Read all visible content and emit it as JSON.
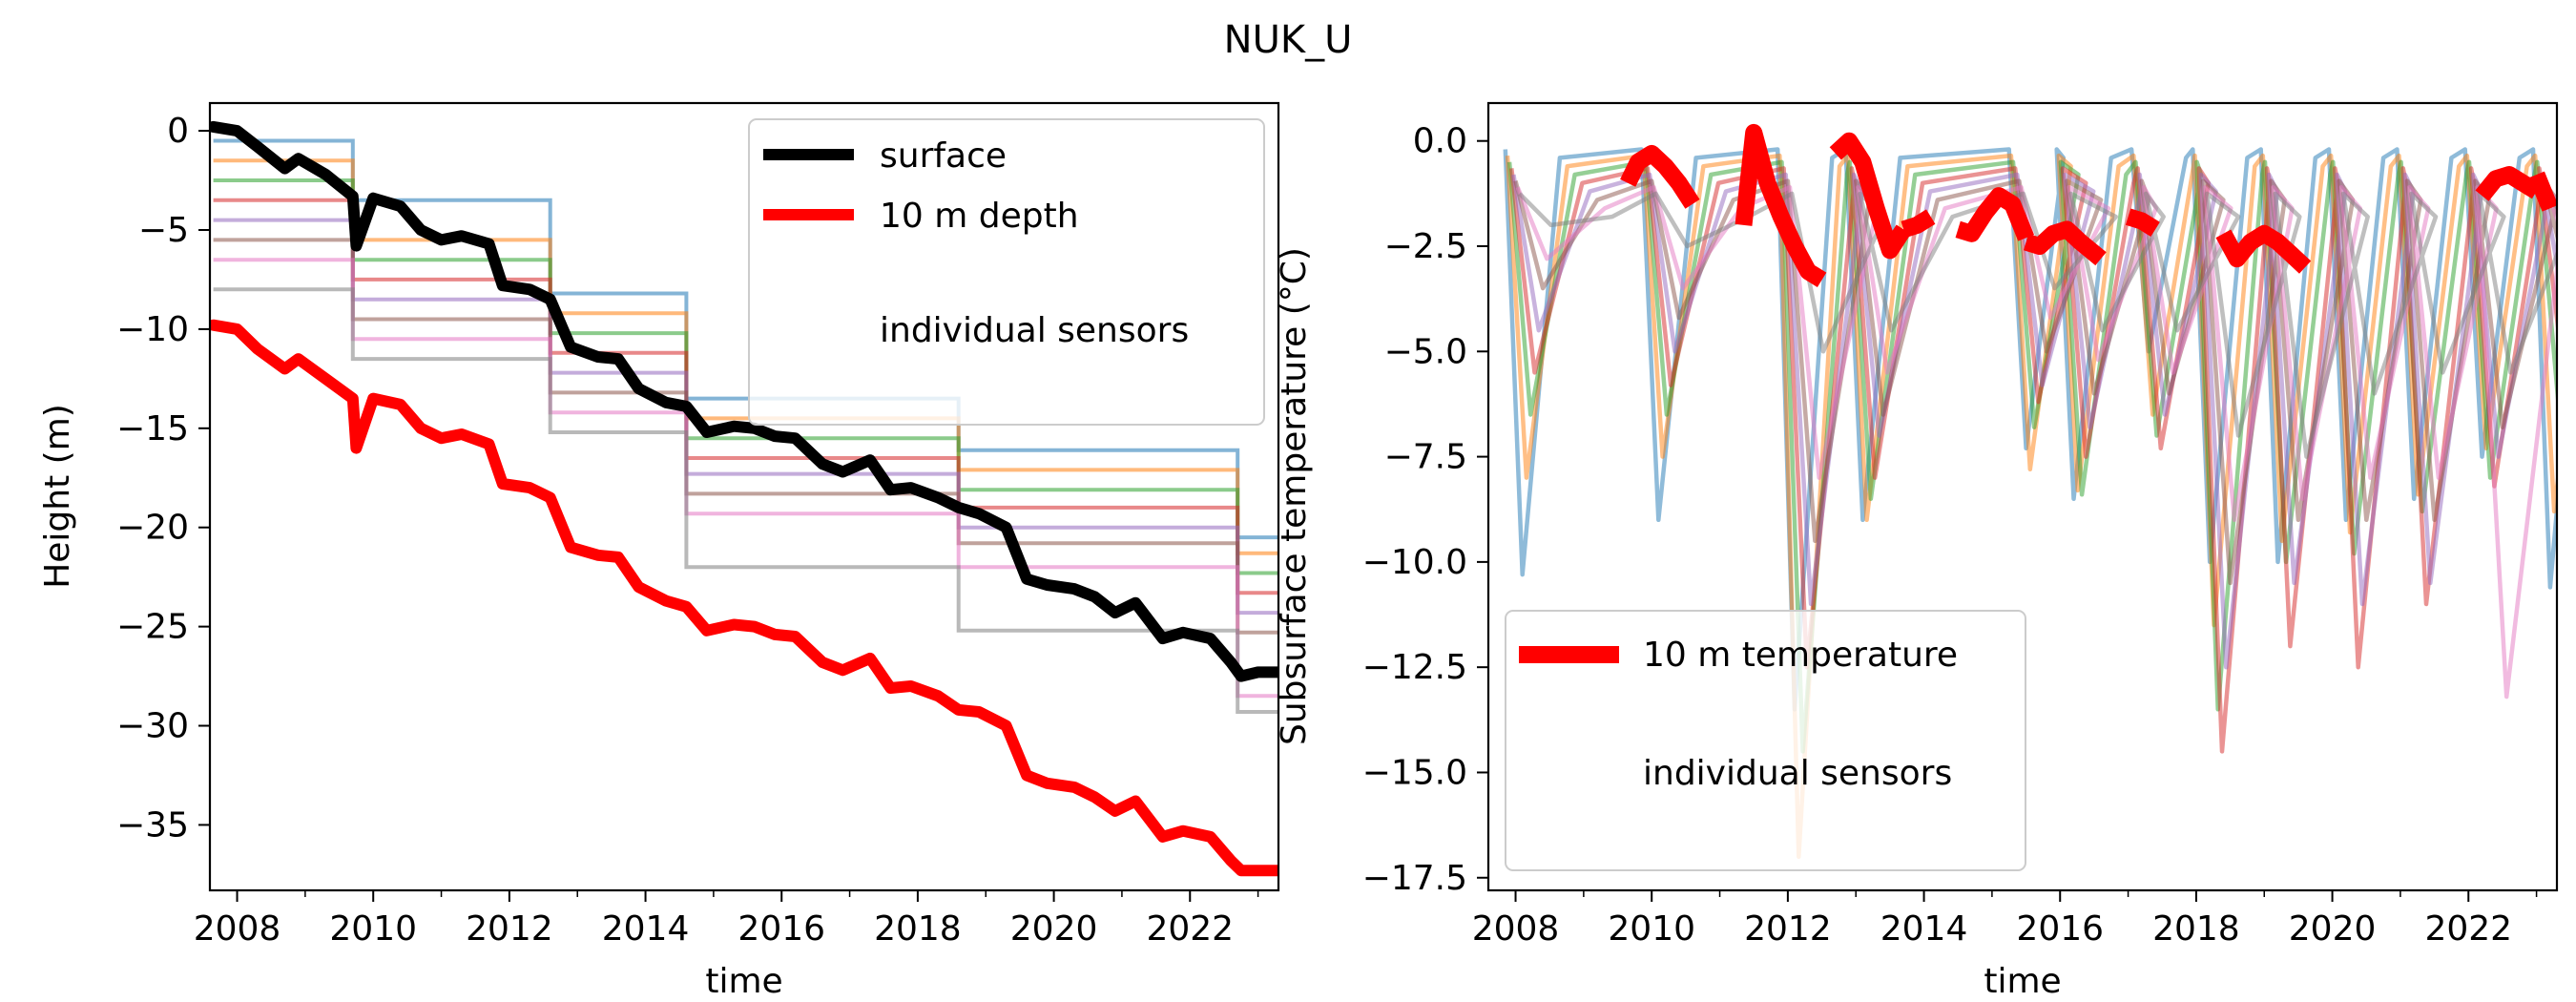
{
  "figure": {
    "title": "NUK_U"
  },
  "colors": {
    "surface": "#000000",
    "depth10": "#ff0000",
    "sensors": [
      "#1f77b4",
      "#ff7f0e",
      "#2ca02c",
      "#d62728",
      "#9467bd",
      "#8c564b",
      "#e377c2",
      "#7f7f7f"
    ]
  },
  "chart_data": [
    {
      "type": "line",
      "panel": "left",
      "xlabel": "time",
      "ylabel": "Height (m)",
      "xlim": [
        2007.6,
        2023.3
      ],
      "ylim": [
        -38.3,
        1.4
      ],
      "xticks": [
        2008,
        2010,
        2012,
        2014,
        2016,
        2018,
        2020,
        2022
      ],
      "yticks": [
        0,
        -5,
        -10,
        -15,
        -20,
        -25,
        -30,
        -35
      ],
      "grid": false,
      "legend": {
        "placement": "top-right",
        "entries": [
          "surface",
          "10 m depth",
          "individual sensors"
        ]
      },
      "series": [
        {
          "name": "surface",
          "x": [
            2007.65,
            2008.0,
            2008.3,
            2008.7,
            2008.9,
            2009.3,
            2009.7,
            2009.75,
            2010.0,
            2010.4,
            2010.7,
            2011.0,
            2011.3,
            2011.7,
            2011.9,
            2012.3,
            2012.6,
            2012.9,
            2013.3,
            2013.6,
            2013.9,
            2014.3,
            2014.6,
            2014.9,
            2015.3,
            2015.6,
            2015.9,
            2016.2,
            2016.6,
            2016.9,
            2017.3,
            2017.6,
            2017.9,
            2018.3,
            2018.6,
            2018.9,
            2019.3,
            2019.6,
            2019.9,
            2020.3,
            2020.6,
            2020.9,
            2021.2,
            2021.6,
            2021.9,
            2022.3,
            2022.6,
            2022.75,
            2023.0,
            2023.3
          ],
          "y": [
            0.2,
            0.0,
            -0.8,
            -1.9,
            -1.4,
            -2.2,
            -3.3,
            -5.8,
            -3.4,
            -3.8,
            -5.0,
            -5.5,
            -5.3,
            -5.7,
            -7.8,
            -8.0,
            -8.5,
            -10.9,
            -11.4,
            -11.5,
            -13.0,
            -13.7,
            -13.9,
            -15.2,
            -14.9,
            -15.0,
            -15.4,
            -15.5,
            -16.8,
            -17.2,
            -16.6,
            -18.1,
            -18.0,
            -18.5,
            -19.0,
            -19.3,
            -20.0,
            -22.6,
            -22.9,
            -23.1,
            -23.5,
            -24.3,
            -23.8,
            -25.6,
            -25.3,
            -25.6,
            -26.8,
            -27.5,
            -27.3,
            -27.3
          ]
        },
        {
          "name": "10 m depth",
          "x": [
            2007.65,
            2008.0,
            2008.3,
            2008.7,
            2008.9,
            2009.3,
            2009.7,
            2009.75,
            2010.0,
            2010.4,
            2010.7,
            2011.0,
            2011.3,
            2011.7,
            2011.9,
            2012.3,
            2012.6,
            2012.9,
            2013.3,
            2013.6,
            2013.9,
            2014.3,
            2014.6,
            2014.9,
            2015.3,
            2015.6,
            2015.9,
            2016.2,
            2016.6,
            2016.9,
            2017.3,
            2017.6,
            2017.9,
            2018.3,
            2018.6,
            2018.9,
            2019.3,
            2019.6,
            2019.9,
            2020.3,
            2020.6,
            2020.9,
            2021.2,
            2021.6,
            2021.9,
            2022.3,
            2022.6,
            2022.75,
            2023.0,
            2023.3
          ],
          "y": [
            -9.8,
            -10.0,
            -11.0,
            -12.0,
            -11.5,
            -12.5,
            -13.5,
            -16.0,
            -13.5,
            -13.8,
            -15.0,
            -15.5,
            -15.3,
            -15.8,
            -17.8,
            -18.0,
            -18.5,
            -21.0,
            -21.4,
            -21.5,
            -23.0,
            -23.7,
            -24.0,
            -25.2,
            -24.9,
            -25.0,
            -25.4,
            -25.5,
            -26.8,
            -27.2,
            -26.6,
            -28.1,
            -28.0,
            -28.5,
            -29.2,
            -29.3,
            -30.0,
            -32.5,
            -32.9,
            -33.1,
            -33.6,
            -34.3,
            -33.8,
            -35.6,
            -35.3,
            -35.6,
            -36.8,
            -37.3,
            -37.3,
            -37.3
          ]
        },
        {
          "name": "individual sensors",
          "note_series": "stepped sensor depth traces",
          "reset_years": [
            2007.65,
            2009.7,
            2012.6,
            2014.6,
            2018.6,
            2022.7
          ],
          "sensor_depths": [
            [
              -0.5,
              -3.5,
              -8.2,
              -13.5,
              -16.1,
              -20.5
            ],
            [
              -1.5,
              -5.5,
              -9.2,
              -14.5,
              -17.1,
              -21.3
            ],
            [
              -2.5,
              -6.5,
              -10.2,
              -15.5,
              -18.1,
              -22.3
            ],
            [
              -3.5,
              -7.5,
              -11.2,
              -16.5,
              -19.0,
              -23.3
            ],
            [
              -4.5,
              -8.5,
              -12.2,
              -17.3,
              -20.0,
              -24.3
            ],
            [
              -5.5,
              -9.5,
              -13.2,
              -18.3,
              -20.8,
              -25.3
            ],
            [
              -6.5,
              -10.5,
              -14.2,
              -19.3,
              -22.0,
              -28.5
            ],
            [
              -8.0,
              -11.5,
              -15.2,
              -22.0,
              -25.2,
              -29.3
            ]
          ]
        }
      ]
    },
    {
      "type": "line",
      "panel": "right",
      "xlabel": "time",
      "ylabel": "Subsurface temperature (°C)",
      "xlim": [
        2007.6,
        2023.3
      ],
      "ylim": [
        -17.8,
        0.9
      ],
      "xticks": [
        2008,
        2010,
        2012,
        2014,
        2016,
        2018,
        2020,
        2022
      ],
      "yticks": [
        0.0,
        -2.5,
        -5.0,
        -7.5,
        -10.0,
        -12.5,
        -15.0,
        -17.5
      ],
      "grid": false,
      "legend": {
        "placement": "bottom-left",
        "entries": [
          "10 m temperature",
          "individual sensors"
        ]
      },
      "series": [
        {
          "name": "10 m temperature",
          "segments": [
            {
              "x": [
                2009.65,
                2009.8,
                2010.0,
                2010.2,
                2010.4,
                2010.6
              ],
              "y": [
                -1.0,
                -0.5,
                -0.3,
                -0.6,
                -1.0,
                -1.5
              ]
            },
            {
              "x": [
                2011.35,
                2011.5,
                2011.7,
                2011.9,
                2012.1,
                2012.3,
                2012.5
              ],
              "y": [
                -2.0,
                0.2,
                -1.0,
                -1.8,
                -2.5,
                -3.1,
                -3.3
              ]
            },
            {
              "x": [
                2012.7,
                2012.9,
                2013.1,
                2013.3,
                2013.5,
                2013.7
              ],
              "y": [
                -0.3,
                0.0,
                -0.5,
                -1.6,
                -2.6,
                -2.1
              ]
            },
            {
              "x": [
                2013.7,
                2013.9,
                2014.1
              ],
              "y": [
                -2.1,
                -2.0,
                -1.8
              ]
            },
            {
              "x": [
                2014.5,
                2014.7,
                2014.9,
                2015.1,
                2015.3,
                2015.5
              ],
              "y": [
                -2.1,
                -2.2,
                -1.7,
                -1.3,
                -1.5,
                -2.3
              ]
            },
            {
              "x": [
                2015.5,
                2015.7,
                2015.9,
                2016.1,
                2016.3,
                2016.6
              ],
              "y": [
                -2.4,
                -2.5,
                -2.2,
                -2.1,
                -2.4,
                -2.8
              ]
            },
            {
              "x": [
                2017.0,
                2017.2,
                2017.4
              ],
              "y": [
                -1.8,
                -1.9,
                -2.1
              ]
            },
            {
              "x": [
                2018.4,
                2018.6,
                2018.8,
                2019.0,
                2019.2,
                2019.4,
                2019.6
              ],
              "y": [
                -2.2,
                -2.8,
                -2.4,
                -2.2,
                -2.4,
                -2.7,
                -3.0
              ]
            },
            {
              "x": [
                2022.2,
                2022.4,
                2022.6,
                2022.8,
                2023.0
              ],
              "y": [
                -1.3,
                -0.9,
                -0.8,
                -1.0,
                -1.2
              ]
            },
            {
              "x": [
                2023.0,
                2023.2
              ],
              "y": [
                -0.8,
                -1.6
              ]
            }
          ]
        },
        {
          "name": "individual sensors",
          "winter_years": [
            2008.1,
            2010.1,
            2012.1,
            2013.1,
            2015.5,
            2016.2,
            2017.3,
            2018.2,
            2019.2,
            2020.2,
            2021.2,
            2022.2,
            2023.2
          ],
          "sensor_minima": [
            [
              -10.3,
              -9.0,
              -13.5,
              -9.0,
              -7.3,
              -8.5,
              -5.0,
              -10.0,
              -10.0,
              -9.0,
              -8.5,
              -7.5,
              -10.6
            ],
            [
              -8.0,
              -7.5,
              -17.0,
              -9.0,
              -7.8,
              -8.3,
              -6.5,
              -11.5,
              -9.5,
              -9.3,
              -8.4,
              -7.3,
              -8.8
            ],
            [
              -6.5,
              -6.5,
              -14.5,
              -8.5,
              -6.8,
              -8.4,
              -7.0,
              -13.5,
              -10.0,
              -9.8,
              -8.8,
              -8.0,
              -6.2
            ],
            [
              -5.5,
              -5.8,
              -12.5,
              -8.0,
              -6.2,
              -7.5,
              -7.3,
              -14.5,
              -12.0,
              -12.5,
              -11.0,
              -8.2,
              -5.3
            ],
            [
              -4.5,
              -5.0,
              -11.0,
              -7.0,
              -5.8,
              -6.8,
              -6.5,
              -12.5,
              -10.5,
              -11.0,
              -10.5,
              -7.5,
              -4.2
            ],
            [
              -3.5,
              -4.2,
              -9.5,
              -6.5,
              -5.0,
              -6.0,
              -6.0,
              -10.5,
              -9.0,
              -9.0,
              -9.0,
              -6.8,
              -3.5
            ],
            [
              -2.8,
              -3.5,
              -8.0,
              -5.5,
              -4.2,
              -5.2,
              -5.5,
              -9.0,
              -8.5,
              -8.0,
              -8.0,
              -13.2,
              -3.0
            ],
            [
              -2.0,
              -2.5,
              -5.0,
              -4.5,
              -3.5,
              -4.5,
              -4.5,
              -7.0,
              -7.5,
              -6.0,
              -5.5,
              -5.5,
              -2.3
            ]
          ]
        }
      ]
    }
  ]
}
